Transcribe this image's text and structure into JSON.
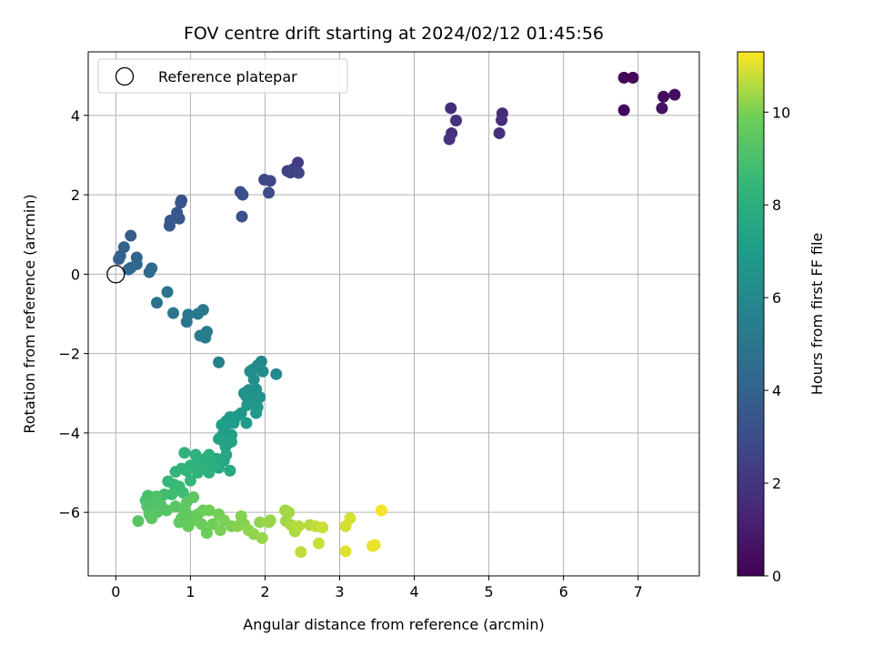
{
  "chart_data": {
    "type": "scatter",
    "title": "FOV centre drift starting at 2024/02/12 01:45:56",
    "xlabel": "Angular distance from reference (arcmin)",
    "ylabel": "Rotation from reference (arcmin)",
    "colorbar_label": "Hours from first FF file",
    "xlim": [
      -0.37,
      7.82
    ],
    "ylim": [
      -7.6,
      5.6
    ],
    "xticks": [
      0,
      1,
      2,
      3,
      4,
      5,
      6,
      7
    ],
    "yticks": [
      -6,
      -4,
      -2,
      0,
      2,
      4
    ],
    "colorbar_range": [
      0,
      11.3
    ],
    "colorbar_ticks": [
      0,
      2,
      4,
      6,
      8,
      10
    ],
    "colormap": "viridis",
    "grid": true,
    "legend": {
      "placement": "top-left",
      "entries": [
        {
          "label": "Reference platepar",
          "marker": "open-circle"
        }
      ]
    },
    "reference_point": {
      "x": 0,
      "y": 0
    },
    "points": [
      {
        "x": 6.81,
        "y": 4.95,
        "c": 0.1
      },
      {
        "x": 6.93,
        "y": 4.95,
        "c": 0.2
      },
      {
        "x": 6.81,
        "y": 4.13,
        "c": 0.3
      },
      {
        "x": 7.34,
        "y": 4.47,
        "c": 0.4
      },
      {
        "x": 7.49,
        "y": 4.52,
        "c": 0.5
      },
      {
        "x": 7.32,
        "y": 4.18,
        "c": 0.6
      },
      {
        "x": 4.49,
        "y": 4.18,
        "c": 1.6
      },
      {
        "x": 4.56,
        "y": 3.87,
        "c": 1.7
      },
      {
        "x": 4.5,
        "y": 3.55,
        "c": 1.8
      },
      {
        "x": 4.47,
        "y": 3.4,
        "c": 1.9
      },
      {
        "x": 5.18,
        "y": 4.05,
        "c": 1.6
      },
      {
        "x": 5.17,
        "y": 3.88,
        "c": 1.7
      },
      {
        "x": 5.14,
        "y": 3.55,
        "c": 1.8
      },
      {
        "x": 2.44,
        "y": 2.81,
        "c": 2.3
      },
      {
        "x": 2.38,
        "y": 2.65,
        "c": 2.4
      },
      {
        "x": 2.3,
        "y": 2.6,
        "c": 2.5
      },
      {
        "x": 2.34,
        "y": 2.56,
        "c": 2.5
      },
      {
        "x": 2.45,
        "y": 2.55,
        "c": 2.6
      },
      {
        "x": 1.99,
        "y": 2.38,
        "c": 2.7
      },
      {
        "x": 2.07,
        "y": 2.35,
        "c": 2.8
      },
      {
        "x": 2.05,
        "y": 2.05,
        "c": 2.9
      },
      {
        "x": 1.67,
        "y": 2.07,
        "c": 3.0
      },
      {
        "x": 1.7,
        "y": 2.0,
        "c": 3.1
      },
      {
        "x": 1.69,
        "y": 1.45,
        "c": 3.2
      },
      {
        "x": 0.88,
        "y": 1.86,
        "c": 3.3
      },
      {
        "x": 0.87,
        "y": 1.8,
        "c": 3.3
      },
      {
        "x": 0.82,
        "y": 1.55,
        "c": 3.4
      },
      {
        "x": 0.85,
        "y": 1.4,
        "c": 3.5
      },
      {
        "x": 0.73,
        "y": 1.35,
        "c": 3.5
      },
      {
        "x": 0.72,
        "y": 1.22,
        "c": 3.6
      },
      {
        "x": 0.2,
        "y": 0.97,
        "c": 3.8
      },
      {
        "x": 0.11,
        "y": 0.68,
        "c": 3.9
      },
      {
        "x": 0.06,
        "y": 0.46,
        "c": 4.0
      },
      {
        "x": 0.04,
        "y": 0.38,
        "c": 4.0
      },
      {
        "x": 0.28,
        "y": 0.42,
        "c": 4.1
      },
      {
        "x": 0.17,
        "y": 0.12,
        "c": 4.2
      },
      {
        "x": 0.28,
        "y": 0.25,
        "c": 4.2
      },
      {
        "x": 0.2,
        "y": 0.16,
        "c": 4.3
      },
      {
        "x": 0.48,
        "y": 0.15,
        "c": 4.4
      },
      {
        "x": 0.45,
        "y": 0.05,
        "c": 4.4
      },
      {
        "x": 0.55,
        "y": -0.72,
        "c": 4.7
      },
      {
        "x": 0.69,
        "y": -0.45,
        "c": 4.8
      },
      {
        "x": 0.77,
        "y": -0.98,
        "c": 4.9
      },
      {
        "x": 0.97,
        "y": -1.02,
        "c": 5.0
      },
      {
        "x": 0.95,
        "y": -1.2,
        "c": 5.0
      },
      {
        "x": 1.1,
        "y": -1.0,
        "c": 5.1
      },
      {
        "x": 1.17,
        "y": -0.9,
        "c": 5.1
      },
      {
        "x": 1.13,
        "y": -1.55,
        "c": 5.2
      },
      {
        "x": 1.22,
        "y": -1.45,
        "c": 5.3
      },
      {
        "x": 1.2,
        "y": -1.6,
        "c": 5.3
      },
      {
        "x": 1.38,
        "y": -2.22,
        "c": 5.6
      },
      {
        "x": 1.95,
        "y": -2.2,
        "c": 6.0
      },
      {
        "x": 1.9,
        "y": -2.3,
        "c": 6.1
      },
      {
        "x": 1.84,
        "y": -2.4,
        "c": 6.1
      },
      {
        "x": 1.8,
        "y": -2.45,
        "c": 6.2
      },
      {
        "x": 1.97,
        "y": -2.45,
        "c": 6.2
      },
      {
        "x": 2.15,
        "y": -2.52,
        "c": 6.0
      },
      {
        "x": 1.85,
        "y": -2.65,
        "c": 6.3
      },
      {
        "x": 1.88,
        "y": -2.9,
        "c": 6.4
      },
      {
        "x": 1.78,
        "y": -2.92,
        "c": 6.4
      },
      {
        "x": 1.72,
        "y": -3.0,
        "c": 6.5
      },
      {
        "x": 1.75,
        "y": -3.08,
        "c": 6.6
      },
      {
        "x": 1.93,
        "y": -3.1,
        "c": 6.5
      },
      {
        "x": 1.8,
        "y": -3.15,
        "c": 6.6
      },
      {
        "x": 1.76,
        "y": -3.3,
        "c": 6.7
      },
      {
        "x": 1.9,
        "y": -3.35,
        "c": 6.7
      },
      {
        "x": 1.88,
        "y": -3.5,
        "c": 6.8
      },
      {
        "x": 1.68,
        "y": -3.5,
        "c": 6.8
      },
      {
        "x": 1.62,
        "y": -3.58,
        "c": 6.9
      },
      {
        "x": 1.53,
        "y": -3.6,
        "c": 6.9
      },
      {
        "x": 1.48,
        "y": -3.7,
        "c": 7.0
      },
      {
        "x": 1.58,
        "y": -3.75,
        "c": 7.0
      },
      {
        "x": 1.75,
        "y": -3.75,
        "c": 6.9
      },
      {
        "x": 1.42,
        "y": -3.8,
        "c": 7.1
      },
      {
        "x": 1.47,
        "y": -3.95,
        "c": 7.1
      },
      {
        "x": 1.43,
        "y": -4.05,
        "c": 7.2
      },
      {
        "x": 1.55,
        "y": -4.05,
        "c": 7.2
      },
      {
        "x": 1.38,
        "y": -4.15,
        "c": 7.3
      },
      {
        "x": 1.45,
        "y": -4.22,
        "c": 7.3
      },
      {
        "x": 1.55,
        "y": -4.22,
        "c": 7.4
      },
      {
        "x": 1.47,
        "y": -4.35,
        "c": 7.4
      },
      {
        "x": 1.48,
        "y": -4.55,
        "c": 7.5
      },
      {
        "x": 1.45,
        "y": -4.7,
        "c": 7.6
      },
      {
        "x": 1.35,
        "y": -4.65,
        "c": 7.6
      },
      {
        "x": 1.38,
        "y": -4.88,
        "c": 7.7
      },
      {
        "x": 1.53,
        "y": -4.95,
        "c": 7.7
      },
      {
        "x": 0.92,
        "y": -4.5,
        "c": 8.2
      },
      {
        "x": 1.07,
        "y": -4.55,
        "c": 8.1
      },
      {
        "x": 1.2,
        "y": -4.65,
        "c": 8.0
      },
      {
        "x": 1.25,
        "y": -4.55,
        "c": 8.0
      },
      {
        "x": 1.1,
        "y": -4.7,
        "c": 8.1
      },
      {
        "x": 1.0,
        "y": -4.82,
        "c": 8.2
      },
      {
        "x": 1.15,
        "y": -4.85,
        "c": 8.1
      },
      {
        "x": 1.3,
        "y": -4.8,
        "c": 8.0
      },
      {
        "x": 0.88,
        "y": -4.9,
        "c": 8.3
      },
      {
        "x": 0.95,
        "y": -4.95,
        "c": 8.3
      },
      {
        "x": 0.8,
        "y": -4.98,
        "c": 8.3
      },
      {
        "x": 1.1,
        "y": -5.0,
        "c": 8.2
      },
      {
        "x": 1.25,
        "y": -5.0,
        "c": 8.1
      },
      {
        "x": 0.7,
        "y": -5.22,
        "c": 8.5
      },
      {
        "x": 0.78,
        "y": -5.3,
        "c": 8.5
      },
      {
        "x": 0.85,
        "y": -5.35,
        "c": 8.6
      },
      {
        "x": 1.0,
        "y": -5.2,
        "c": 8.4
      },
      {
        "x": 0.65,
        "y": -5.55,
        "c": 8.8
      },
      {
        "x": 0.75,
        "y": -5.55,
        "c": 8.8
      },
      {
        "x": 0.9,
        "y": -5.5,
        "c": 8.7
      },
      {
        "x": 0.43,
        "y": -5.58,
        "c": 9.0
      },
      {
        "x": 0.5,
        "y": -5.62,
        "c": 9.0
      },
      {
        "x": 0.4,
        "y": -5.7,
        "c": 9.0
      },
      {
        "x": 0.55,
        "y": -5.6,
        "c": 9.1
      },
      {
        "x": 0.42,
        "y": -5.85,
        "c": 9.2
      },
      {
        "x": 0.52,
        "y": -5.9,
        "c": 9.2
      },
      {
        "x": 0.6,
        "y": -5.8,
        "c": 9.2
      },
      {
        "x": 0.45,
        "y": -6.05,
        "c": 9.3
      },
      {
        "x": 0.55,
        "y": -6.0,
        "c": 9.3
      },
      {
        "x": 0.68,
        "y": -5.95,
        "c": 9.3
      },
      {
        "x": 0.48,
        "y": -6.15,
        "c": 9.4
      },
      {
        "x": 0.3,
        "y": -6.22,
        "c": 9.4
      },
      {
        "x": 0.8,
        "y": -5.85,
        "c": 9.4
      },
      {
        "x": 0.95,
        "y": -5.75,
        "c": 9.5
      },
      {
        "x": 0.92,
        "y": -5.95,
        "c": 9.5
      },
      {
        "x": 1.04,
        "y": -5.62,
        "c": 9.5
      },
      {
        "x": 0.88,
        "y": -6.15,
        "c": 9.6
      },
      {
        "x": 1.0,
        "y": -6.1,
        "c": 9.6
      },
      {
        "x": 0.85,
        "y": -6.25,
        "c": 9.6
      },
      {
        "x": 0.97,
        "y": -6.35,
        "c": 9.7
      },
      {
        "x": 1.05,
        "y": -6.2,
        "c": 9.7
      },
      {
        "x": 1.1,
        "y": -6.05,
        "c": 9.7
      },
      {
        "x": 1.15,
        "y": -6.3,
        "c": 9.8
      },
      {
        "x": 1.22,
        "y": -6.52,
        "c": 9.8
      },
      {
        "x": 1.17,
        "y": -5.95,
        "c": 9.8
      },
      {
        "x": 1.25,
        "y": -5.95,
        "c": 9.9
      },
      {
        "x": 1.3,
        "y": -6.3,
        "c": 9.9
      },
      {
        "x": 1.38,
        "y": -6.05,
        "c": 9.9
      },
      {
        "x": 1.4,
        "y": -6.45,
        "c": 10.0
      },
      {
        "x": 1.45,
        "y": -6.2,
        "c": 10.0
      },
      {
        "x": 1.55,
        "y": -6.35,
        "c": 10.0
      },
      {
        "x": 1.63,
        "y": -6.35,
        "c": 10.1
      },
      {
        "x": 1.68,
        "y": -6.1,
        "c": 10.1
      },
      {
        "x": 1.72,
        "y": -6.3,
        "c": 10.1
      },
      {
        "x": 1.78,
        "y": -6.45,
        "c": 10.2
      },
      {
        "x": 1.85,
        "y": -6.55,
        "c": 10.2
      },
      {
        "x": 1.93,
        "y": -6.25,
        "c": 10.2
      },
      {
        "x": 1.96,
        "y": -6.65,
        "c": 10.3
      },
      {
        "x": 2.05,
        "y": -6.25,
        "c": 10.3
      },
      {
        "x": 2.07,
        "y": -6.2,
        "c": 10.3
      },
      {
        "x": 2.27,
        "y": -5.95,
        "c": 10.4
      },
      {
        "x": 2.32,
        "y": -6.0,
        "c": 10.4
      },
      {
        "x": 2.28,
        "y": -6.22,
        "c": 10.4
      },
      {
        "x": 2.35,
        "y": -6.32,
        "c": 10.5
      },
      {
        "x": 2.4,
        "y": -6.48,
        "c": 10.5
      },
      {
        "x": 2.45,
        "y": -6.35,
        "c": 10.6
      },
      {
        "x": 2.48,
        "y": -7.0,
        "c": 10.7
      },
      {
        "x": 2.6,
        "y": -6.32,
        "c": 10.6
      },
      {
        "x": 2.68,
        "y": -6.35,
        "c": 10.7
      },
      {
        "x": 2.72,
        "y": -6.78,
        "c": 10.8
      },
      {
        "x": 2.77,
        "y": -6.38,
        "c": 10.8
      },
      {
        "x": 3.08,
        "y": -6.35,
        "c": 10.9
      },
      {
        "x": 3.14,
        "y": -6.15,
        "c": 10.9
      },
      {
        "x": 3.08,
        "y": -6.98,
        "c": 11.0
      },
      {
        "x": 3.44,
        "y": -6.85,
        "c": 11.1
      },
      {
        "x": 3.47,
        "y": -6.82,
        "c": 11.1
      },
      {
        "x": 3.56,
        "y": -5.95,
        "c": 11.2
      }
    ]
  }
}
